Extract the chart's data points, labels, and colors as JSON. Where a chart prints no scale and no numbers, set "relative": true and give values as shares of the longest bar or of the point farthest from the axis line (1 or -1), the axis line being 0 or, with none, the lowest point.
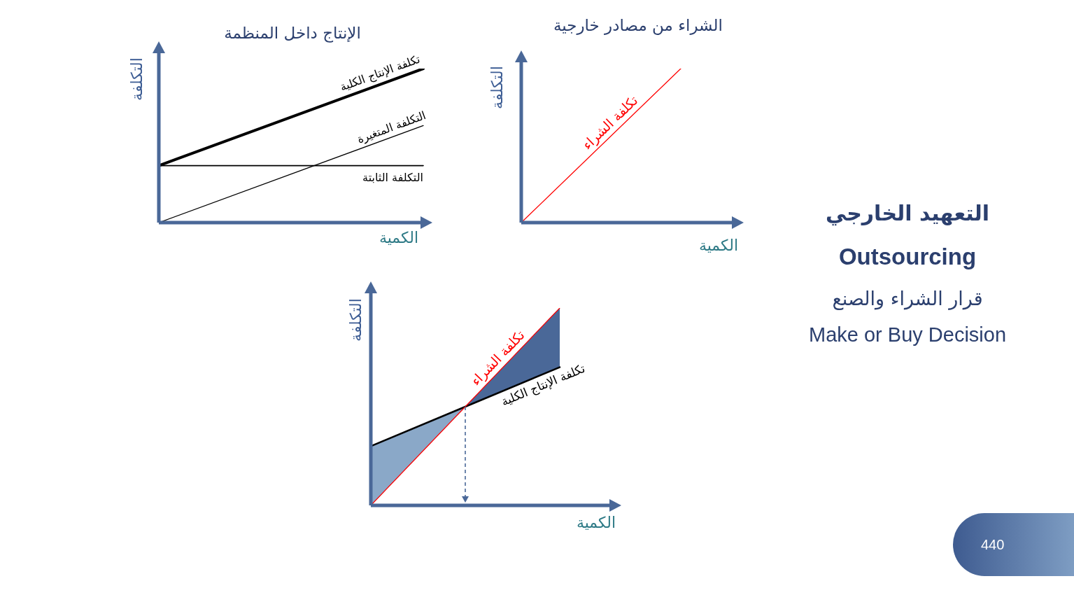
{
  "chart_data": [
    {
      "type": "line",
      "title": "الإنتاج داخل المنظمة",
      "xlabel": "الكمية",
      "ylabel": "التكلفة",
      "relative": true,
      "marker": "none",
      "categories": [
        null,
        null
      ],
      "series": [
        {
          "name": "تكلفة الإنتاج الكلية",
          "color": "#000000",
          "values": [
            0.37,
            1
          ]
        },
        {
          "name": "التكلفة المتغيرة",
          "color": "#000000",
          "values": [
            0,
            0.63
          ]
        },
        {
          "name": "التكلفة الثابتة",
          "color": "#000000",
          "values": [
            0.37,
            0.37
          ]
        }
      ]
    },
    {
      "type": "line",
      "title": "الشراء من مصادر خارجية",
      "xlabel": "الكمية",
      "ylabel": "التكلفة",
      "relative": true,
      "marker": "none",
      "categories": [
        null,
        null
      ],
      "series": [
        {
          "name": "تكلفة الشراء",
          "color": "#ff0000",
          "values": [
            0,
            1
          ]
        }
      ]
    },
    {
      "type": "line",
      "xlabel": "الكمية",
      "ylabel": "التكلفة",
      "relative": true,
      "marker": "none",
      "categories": [
        null,
        null,
        null
      ],
      "series": [
        {
          "type": "area",
          "color": "#8aa8c8",
          "values": [
            0.3,
            0.5,
            null
          ]
        },
        {
          "type": "area",
          "color": "#4a6898",
          "values": [
            null,
            0.5,
            1
          ]
        },
        {
          "name": "تكلفة الإنتاج الكلية",
          "color": "#000000",
          "values": [
            0.3,
            0.5,
            0.7
          ]
        },
        {
          "name": "تكلفة الشراء",
          "color": "#ff0000",
          "values": [
            0,
            0.5,
            1
          ]
        }
      ]
    },
    {
      "type": "other",
      "title": "التعهيد الخارجي",
      "subtitle": "Outsourcing",
      "annotations": [
        "قرار الشراء والصنع",
        "Make or Buy Decision",
        "440"
      ]
    }
  ]
}
